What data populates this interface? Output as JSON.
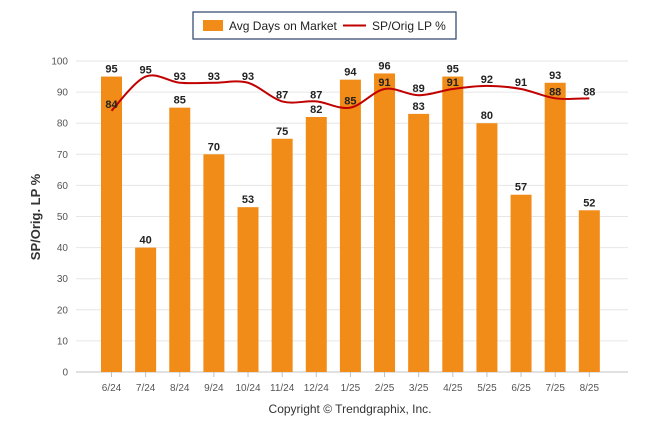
{
  "chart_data": {
    "type": "bar",
    "categories": [
      "6/24",
      "7/24",
      "8/24",
      "9/24",
      "10/24",
      "11/24",
      "12/24",
      "1/25",
      "2/25",
      "3/25",
      "4/25",
      "5/25",
      "6/25",
      "7/25",
      "8/25"
    ],
    "series": [
      {
        "name": "Avg Days on Market",
        "type": "bar",
        "color": "#F28C18",
        "values": [
          95,
          40,
          85,
          70,
          53,
          75,
          82,
          94,
          96,
          83,
          95,
          80,
          57,
          93,
          52
        ]
      },
      {
        "name": "SP/Orig LP %",
        "type": "line",
        "color": "#C00000",
        "values": [
          84,
          95,
          93,
          93,
          93,
          87,
          87,
          85,
          91,
          89,
          91,
          92,
          91,
          88,
          88
        ]
      }
    ],
    "ylabel": "SP/Orig. LP %",
    "ylim": [
      0,
      100
    ],
    "yticks": [
      0,
      10,
      20,
      30,
      40,
      50,
      60,
      70,
      80,
      90,
      100
    ],
    "grid": true,
    "legend": "top-center"
  },
  "footer": {
    "copyright": "Copyright © Trendgraphix, Inc."
  }
}
